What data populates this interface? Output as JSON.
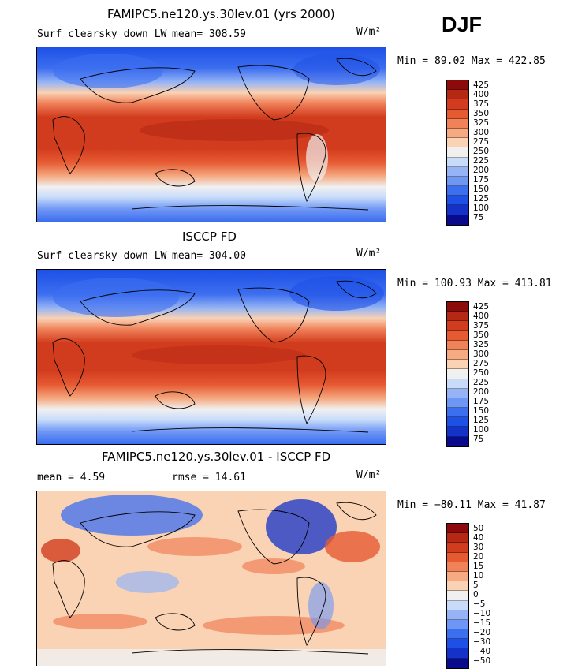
{
  "season_label": "DJF",
  "units": "W/m²",
  "palette_abs": [
    "#0a0a8c",
    "#1432c8",
    "#1e50e6",
    "#3c6ef0",
    "#6e96f5",
    "#96b4f5",
    "#c8dcfa",
    "#f0f0f0",
    "#fad2b4",
    "#f5aa82",
    "#f0825a",
    "#e65a32",
    "#d23c1e",
    "#b42814",
    "#8c0a0a"
  ],
  "panels": [
    {
      "title": "FAMIPC5.ne120.ys.30lev.01 (yrs 2000)",
      "left_text": "Surf clearsky down LW",
      "mid_text": "mean= 308.59",
      "units": "W/m²",
      "minmax": "Min =  89.02 Max = 422.85",
      "colorbar_labels": [
        "425",
        "400",
        "375",
        "350",
        "325",
        "300",
        "275",
        "250",
        "225",
        "200",
        "175",
        "150",
        "125",
        "100",
        "75"
      ]
    },
    {
      "title": "ISCCP FD",
      "left_text": "Surf clearsky down LW",
      "mid_text": "mean= 304.00",
      "units": "W/m²",
      "minmax": "Min = 100.93 Max = 413.81",
      "colorbar_labels": [
        "425",
        "400",
        "375",
        "350",
        "325",
        "300",
        "275",
        "250",
        "225",
        "200",
        "175",
        "150",
        "125",
        "100",
        "75"
      ]
    },
    {
      "title": "FAMIPC5.ne120.ys.30lev.01 - ISCCP FD",
      "left_text": "mean =   4.59",
      "mid_text": "rmse =  14.61",
      "units": "W/m²",
      "minmax": "Min = −80.11 Max =  41.87",
      "colorbar_labels": [
        "50",
        "40",
        "30",
        "20",
        "15",
        "10",
        "5",
        "0",
        "−5",
        "−10",
        "−15",
        "−20",
        "−30",
        "−40",
        "−50"
      ]
    }
  ]
}
